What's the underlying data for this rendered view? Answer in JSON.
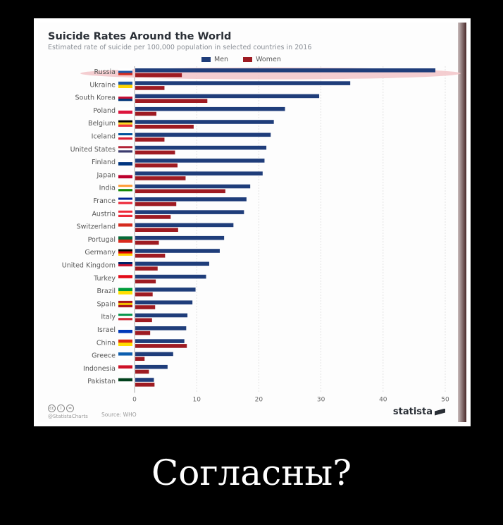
{
  "caption": "Согласны?",
  "chart_data": {
    "type": "bar",
    "title": "Suicide Rates Around the World",
    "subtitle": "Estimated rate of suicide per 100,000 population in selected countries in 2016",
    "categories": [
      "Russia",
      "Ukraine",
      "South Korea",
      "Poland",
      "Belgium",
      "Iceland",
      "United States",
      "Finland",
      "Japan",
      "India",
      "France",
      "Austria",
      "Switzerland",
      "Portugal",
      "Germany",
      "United Kingdom",
      "Turkey",
      "Brazil",
      "Spain",
      "Italy",
      "Israel",
      "China",
      "Greece",
      "Indonesia",
      "Pakistan"
    ],
    "series": [
      {
        "name": "Men",
        "color": "#1f3d7a",
        "values": [
          48.3,
          34.6,
          29.6,
          24.1,
          22.3,
          21.8,
          21.1,
          20.8,
          20.5,
          18.5,
          17.9,
          17.5,
          15.8,
          14.3,
          13.6,
          11.9,
          11.4,
          9.7,
          9.2,
          8.4,
          8.2,
          7.9,
          6.1,
          5.2,
          3.0
        ]
      },
      {
        "name": "Women",
        "color": "#9e1b22",
        "values": [
          7.5,
          4.7,
          11.6,
          3.4,
          9.4,
          4.7,
          6.4,
          6.8,
          8.1,
          14.5,
          6.6,
          5.7,
          6.9,
          3.8,
          4.8,
          3.6,
          3.3,
          2.8,
          3.2,
          2.7,
          2.4,
          8.3,
          1.5,
          2.2,
          3.1
        ]
      }
    ],
    "xticks": [
      "0",
      "10",
      "20",
      "30",
      "40",
      "50"
    ],
    "xlim": [
      0,
      50
    ],
    "highlight": "Russia",
    "grid": true,
    "legend_position": "top"
  },
  "footer": {
    "handle": "@StatistaCharts",
    "source": "Source: WHO",
    "brand": "statista"
  }
}
